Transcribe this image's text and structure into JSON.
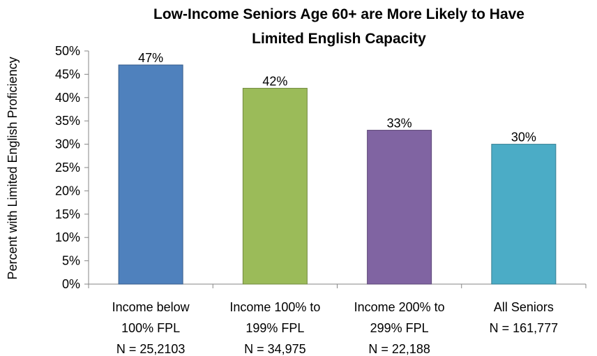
{
  "chart_data": {
    "type": "bar",
    "title_lines": [
      "Low-Income Seniors Age 60+ are More Likely to Have",
      "Limited English Capacity"
    ],
    "xlabel": "",
    "ylabel": "Percent with Limited English Proficiency",
    "ylim": [
      0,
      50
    ],
    "y_ticks": [
      "0%",
      "5%",
      "10%",
      "15%",
      "20%",
      "25%",
      "30%",
      "35%",
      "40%",
      "45%",
      "50%"
    ],
    "grid": false,
    "legend": "none",
    "categories": [
      {
        "lines": [
          "Income below",
          "100% FPL",
          "N = 25,2103"
        ]
      },
      {
        "lines": [
          "Income 100% to",
          "199% FPL",
          "N = 34,975"
        ]
      },
      {
        "lines": [
          "Income 200% to",
          "299% FPL",
          "N = 22,188"
        ]
      },
      {
        "lines": [
          "All Seniors",
          "N = 161,777"
        ]
      }
    ],
    "values": [
      47,
      42,
      33,
      30
    ],
    "data_labels": [
      "47%",
      "42%",
      "33%",
      "30%"
    ],
    "colors": [
      "#4F81BD",
      "#9BBB59",
      "#8064A2",
      "#4BACC6"
    ],
    "edge_colors": [
      "#385D8A",
      "#71893F",
      "#5C4776",
      "#357D91"
    ]
  }
}
